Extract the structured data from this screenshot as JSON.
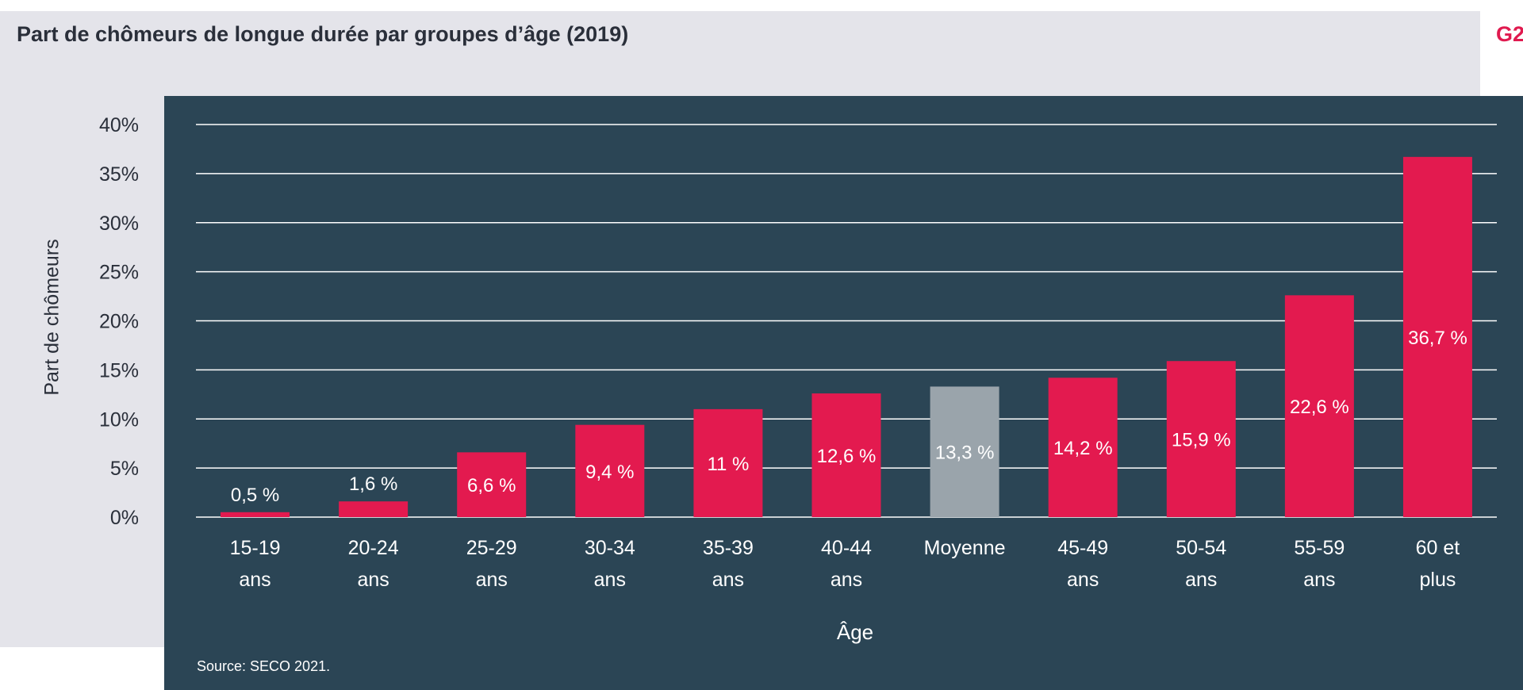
{
  "header": {
    "title": "Part de chômeurs de longue durée par groupes d’âge (2019)",
    "badge": "G2"
  },
  "source": "Source: SECO 2021.",
  "colors": {
    "bar": "#e31a4f",
    "bar_average": "#9aa4ab",
    "panel": "#2b4555",
    "grid": "#ffffff"
  },
  "chart_data": {
    "type": "bar",
    "title": "Part de chômeurs de longue durée par groupes d’âge (2019)",
    "xlabel": "Âge",
    "ylabel": "Part de chômeurs",
    "ylim": [
      0,
      40
    ],
    "yticks": [
      "0%",
      "5%",
      "10%",
      "15%",
      "20%",
      "25%",
      "30%",
      "35%",
      "40%"
    ],
    "categories": [
      [
        "15-19",
        "ans"
      ],
      [
        "20-24",
        "ans"
      ],
      [
        "25-29",
        "ans"
      ],
      [
        "30-34",
        "ans"
      ],
      [
        "35-39",
        "ans"
      ],
      [
        "40-44",
        "ans"
      ],
      [
        "Moyenne"
      ],
      [
        "45-49",
        "ans"
      ],
      [
        "50-54",
        "ans"
      ],
      [
        "55-59",
        "ans"
      ],
      [
        "60 et",
        "plus"
      ]
    ],
    "values": [
      0.5,
      1.6,
      6.6,
      9.4,
      11,
      12.6,
      13.3,
      14.2,
      15.9,
      22.6,
      36.7
    ],
    "labels": [
      "0,5 %",
      "1,6 %",
      "6,6 %",
      "9,4 %",
      "11 %",
      "12,6 %",
      "13,3 %",
      "14,2 %",
      "15,9 %",
      "22,6 %",
      "36,7 %"
    ],
    "highlight": [
      6
    ],
    "grid": true,
    "legend": "none"
  }
}
